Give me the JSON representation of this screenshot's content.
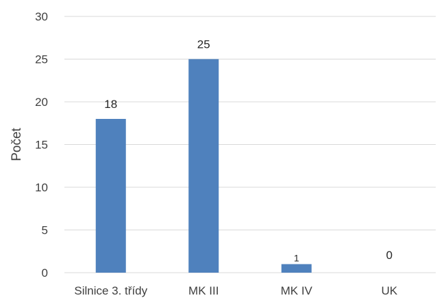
{
  "chart_data": {
    "type": "bar",
    "categories": [
      "Silnice 3. třídy",
      "MK III",
      "MK IV",
      "UK"
    ],
    "values": [
      18,
      25,
      1,
      0
    ],
    "data_labels": [
      "18",
      "25",
      "1",
      "0"
    ],
    "title": "",
    "xlabel": "",
    "ylabel": "Počet",
    "ylim": [
      0,
      30
    ],
    "yticks": [
      0,
      5,
      10,
      15,
      20,
      25,
      30
    ],
    "grid": true,
    "legend": "none",
    "bar_color": "#4f81bd"
  }
}
